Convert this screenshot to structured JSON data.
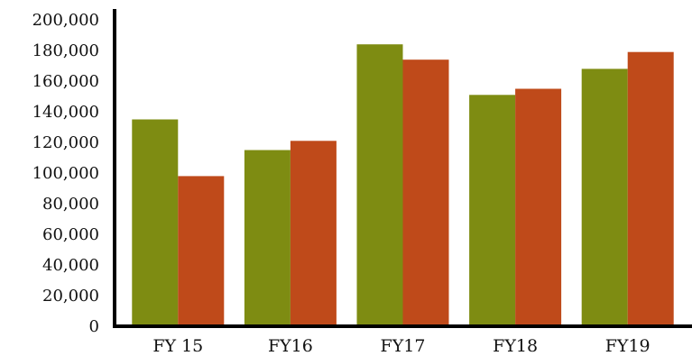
{
  "chart_data": {
    "type": "bar",
    "title": "",
    "xlabel": "",
    "ylabel": "",
    "categories": [
      "FY 15",
      "FY16",
      "FY17",
      "FY18",
      "FY19"
    ],
    "series": [
      {
        "values": [
          135000,
          115000,
          184000,
          151000,
          168000
        ],
        "color": "#7e8c12"
      },
      {
        "values": [
          98000,
          121000,
          174000,
          155000,
          179000
        ],
        "color": "#bf4a1a"
      }
    ],
    "ylim": [
      0,
      200000
    ],
    "yticks": [
      0,
      20000,
      40000,
      60000,
      80000,
      100000,
      120000,
      140000,
      160000,
      180000,
      200000
    ],
    "ytick_labels": [
      "0",
      "20,000",
      "40,000",
      "60,000",
      "80,000",
      "100,000",
      "120,000",
      "140,000",
      "160,000",
      "180,000",
      "200,000"
    ],
    "grid": false,
    "legend": "none"
  }
}
